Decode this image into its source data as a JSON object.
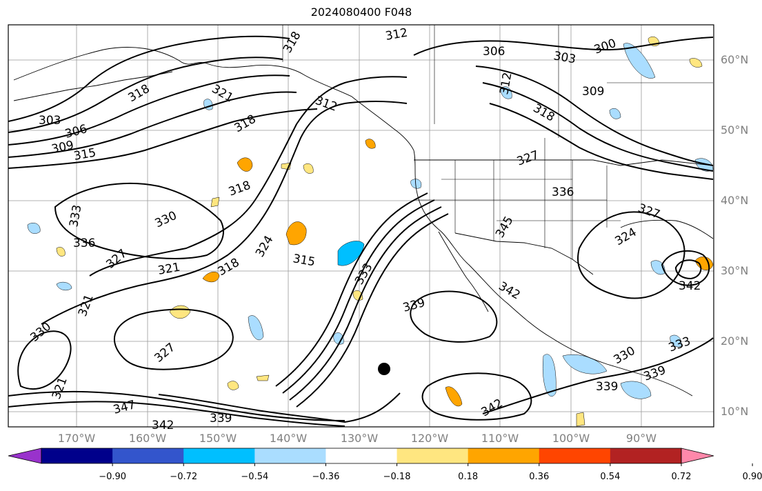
{
  "title": "2024080400 F048",
  "lat_labels": [
    "60°N",
    "50°N",
    "40°N",
    "30°N",
    "20°N",
    "10°N"
  ],
  "lon_labels": [
    "170°W",
    "160°W",
    "150°W",
    "140°W",
    "130°W",
    "120°W",
    "110°W",
    "100°W",
    "90°W"
  ],
  "colorbar": {
    "colors": [
      "#9932cc",
      "#00008b",
      "#3355cc",
      "#00bfff",
      "#aaddff",
      "#ffffff",
      "#ffe680",
      "#ffa500",
      "#ff4500",
      "#b22222",
      "#ff88aa"
    ],
    "tick_labels": [
      "−0.90",
      "−0.72",
      "−0.54",
      "−0.36",
      "−0.18",
      "0.18",
      "0.36",
      "0.54",
      "0.72",
      "0.90"
    ]
  },
  "contour_labels": [
    "303",
    "306",
    "309",
    "312",
    "315",
    "318",
    "321",
    "324",
    "327",
    "330",
    "333",
    "336",
    "339",
    "342"
  ],
  "storm_marker": "tropical-cyclone-position"
}
